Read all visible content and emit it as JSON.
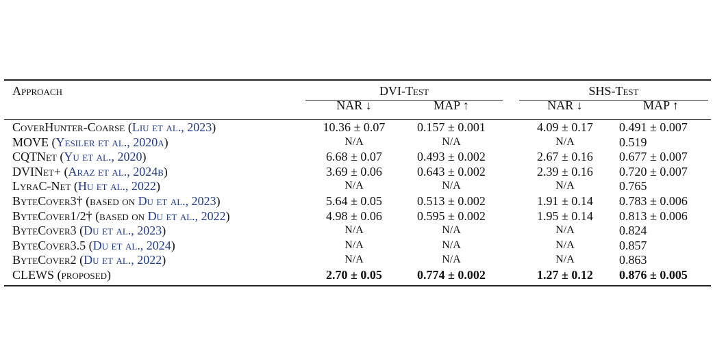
{
  "header": {
    "approach": "Approach",
    "dvi_group": "DVI-Test",
    "shs_group": "SHS-Test",
    "nar": "NAR ↓",
    "map": "MAP ↑"
  },
  "rows": [
    {
      "name": "CoverHunter-Coarse",
      "pre": " (",
      "cite": "Liu et al., 2023",
      "post": ")",
      "dvi_nar": "10.36 ± 0.07",
      "dvi_map": "0.157 ± 0.001",
      "shs_nar": "4.09 ± 0.17",
      "shs_map": "0.491 ± 0.007"
    },
    {
      "name": "MOVE",
      "pre": " (",
      "cite": "Yesiler et al., 2020a",
      "post": ")",
      "dvi_nar": "N/A",
      "dvi_map": "N/A",
      "shs_nar": "N/A",
      "shs_map": "0.519"
    },
    {
      "name": "CQTNet",
      "pre": " (",
      "cite": "Yu et al., 2020",
      "post": ")",
      "dvi_nar": "6.68 ± 0.07",
      "dvi_map": "0.493 ± 0.002",
      "shs_nar": "2.67 ± 0.16",
      "shs_map": "0.677 ± 0.007"
    },
    {
      "name": "DVINet+",
      "pre": " (",
      "cite": "Araz et al., 2024b",
      "post": ")",
      "dvi_nar": "3.69 ± 0.06",
      "dvi_map": "0.643 ± 0.002",
      "shs_nar": "2.39 ± 0.16",
      "shs_map": "0.720 ± 0.007"
    },
    {
      "name": "LyraC-Net",
      "pre": " (",
      "cite": "Hu et al., 2022",
      "post": ")",
      "dvi_nar": "N/A",
      "dvi_map": "N/A",
      "shs_nar": "N/A",
      "shs_map": "0.765"
    },
    {
      "name": "ByteCover3†",
      "pre": " (based on ",
      "cite": "Du et al., 2023",
      "post": ")",
      "dvi_nar": "5.64 ± 0.05",
      "dvi_map": "0.513 ± 0.002",
      "shs_nar": "1.91 ± 0.14",
      "shs_map": "0.783 ± 0.006"
    },
    {
      "name": "ByteCover1/2†",
      "pre": " (based on ",
      "cite": "Du et al., 2022",
      "post": ")",
      "dvi_nar": "4.98 ± 0.06",
      "dvi_map": "0.595 ± 0.002",
      "shs_nar": "1.95 ± 0.14",
      "shs_map": "0.813 ± 0.006"
    },
    {
      "name": "ByteCover3",
      "pre": " (",
      "cite": "Du et al., 2023",
      "post": ")",
      "dvi_nar": "N/A",
      "dvi_map": "N/A",
      "shs_nar": "N/A",
      "shs_map": "0.824"
    },
    {
      "name": "ByteCover3.5",
      "pre": " (",
      "cite": "Du et al., 2024",
      "post": ")",
      "dvi_nar": "N/A",
      "dvi_map": "N/A",
      "shs_nar": "N/A",
      "shs_map": "0.857"
    },
    {
      "name": "ByteCover2",
      "pre": " (",
      "cite": "Du et al., 2022",
      "post": ")",
      "dvi_nar": "N/A",
      "dvi_map": "N/A",
      "shs_nar": "N/A",
      "shs_map": "0.863"
    },
    {
      "name": "CLEWS",
      "pre": " (proposed)",
      "cite": "",
      "post": "",
      "dvi_nar": "2.70 ± 0.05",
      "dvi_map": "0.774 ± 0.002",
      "shs_nar": "1.27 ± 0.12",
      "shs_map": "0.876 ± 0.005"
    }
  ]
}
